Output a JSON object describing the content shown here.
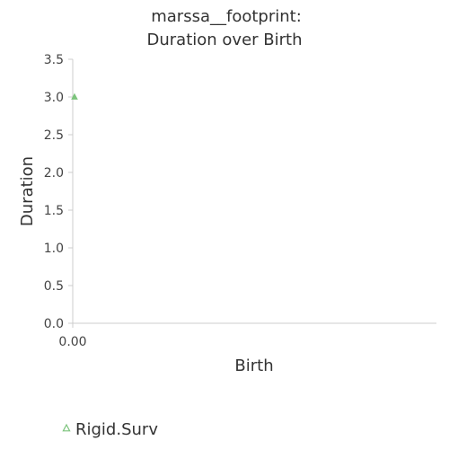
{
  "chart_data": {
    "type": "scatter",
    "title_lines": [
      "marssa__footprint:",
      "Duration over Birth"
    ],
    "xlabel": "Birth",
    "ylabel": "Duration",
    "x_ticks": [
      "0.00"
    ],
    "y_ticks": [
      "0.0",
      "0.5",
      "1.0",
      "1.5",
      "2.0",
      "2.5",
      "3.0",
      "3.5"
    ],
    "ylim": [
      0,
      3.5
    ],
    "xlim": [
      0,
      1
    ],
    "grid": false,
    "legend_position": "bottom-left",
    "series": [
      {
        "name": "Rigid.Surv",
        "color": "#7cc47c",
        "marker": "triangle",
        "points": [
          {
            "x": 0,
            "y": 3.0
          }
        ]
      }
    ]
  }
}
